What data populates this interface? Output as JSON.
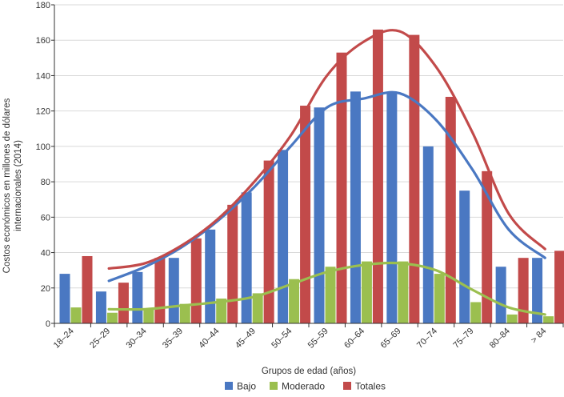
{
  "chart_data": {
    "type": "bar",
    "title": "",
    "xlabel": "Grupos de edad (años)",
    "ylabel_lines": [
      "Costos económicos en millones de dólares",
      "internacionales (2014)"
    ],
    "ylim": [
      0,
      180
    ],
    "yticks": [
      "0",
      "20",
      "40",
      "60",
      "80",
      "100",
      "120",
      "140",
      "160",
      "180"
    ],
    "categories": [
      "18–24",
      "25–29",
      "30–34",
      "35–39",
      "40–44",
      "45–49",
      "50–54",
      "55–59",
      "60–64",
      "65–69",
      "70–74",
      "75–79",
      "80–84",
      "> 84"
    ],
    "series": [
      {
        "name": "Bajo",
        "color": "#4a78c2",
        "values": [
          28,
          18,
          29,
          37,
          53,
          74,
          98,
          122,
          131,
          130,
          100,
          75,
          32,
          37
        ]
      },
      {
        "name": "Moderado",
        "color": "#9bbf4f",
        "values": [
          9,
          6,
          8,
          11,
          14,
          17,
          25,
          32,
          35,
          35,
          28,
          12,
          5,
          4
        ]
      },
      {
        "name": "Totales",
        "color": "#c24a4a",
        "values": [
          38,
          23,
          37,
          48,
          67,
          92,
          123,
          153,
          166,
          163,
          128,
          86,
          37,
          41
        ]
      }
    ],
    "trendlines": [
      {
        "series": "Bajo",
        "color": "#4a78c2",
        "start_index": 1,
        "values": [
          23,
          24,
          32,
          43,
          58,
          77,
          100,
          122,
          127,
          130,
          115,
          87,
          53,
          37
        ]
      },
      {
        "series": "Moderado",
        "color": "#9bbf4f",
        "start_index": 1,
        "values": [
          7.5,
          8,
          8,
          10,
          12,
          15,
          22,
          29,
          33,
          34,
          30,
          19,
          9,
          5
        ]
      },
      {
        "series": "Totales",
        "color": "#c24a4a",
        "start_index": 1,
        "values": [
          31,
          31,
          34,
          44,
          59,
          80,
          106,
          140,
          159,
          165,
          145,
          108,
          62,
          42
        ]
      }
    ],
    "legend_position": "bottom-center",
    "grid": true
  }
}
